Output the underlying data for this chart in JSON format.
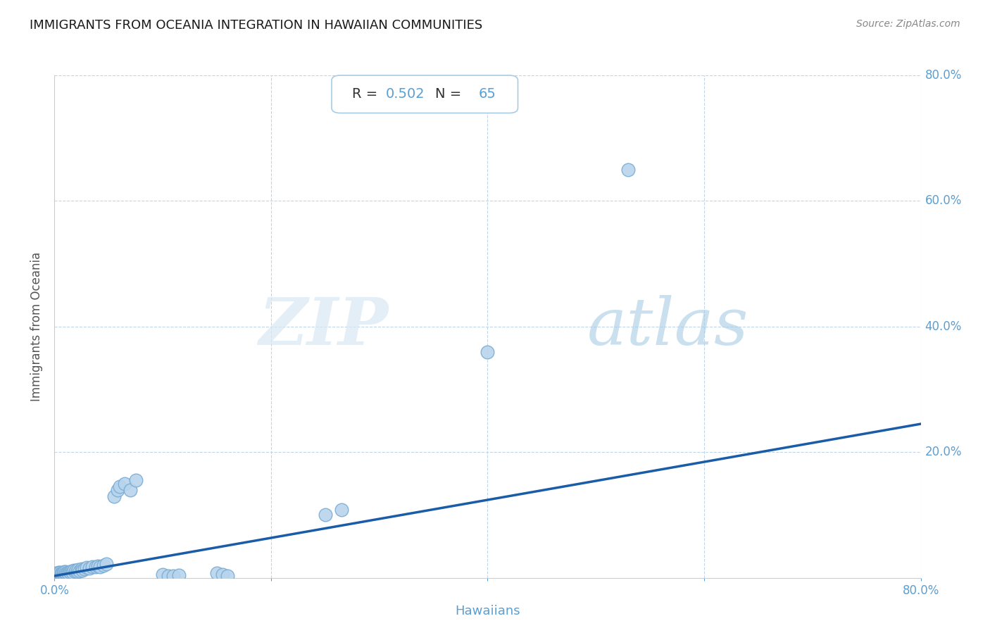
{
  "title": "IMMIGRANTS FROM OCEANIA INTEGRATION IN HAWAIIAN COMMUNITIES",
  "source": "Source: ZipAtlas.com",
  "xlabel": "Hawaiians",
  "ylabel": "Immigrants from Oceania",
  "R": 0.502,
  "N": 65,
  "xlim": [
    0.0,
    0.8
  ],
  "ylim": [
    0.0,
    0.8
  ],
  "xticks": [
    0.0,
    0.2,
    0.4,
    0.6,
    0.8
  ],
  "xticklabels": [
    "0.0%",
    "",
    "",
    "",
    "80.0%"
  ],
  "yticks": [
    0.2,
    0.4,
    0.6,
    0.8
  ],
  "yticklabels": [
    "20.0%",
    "40.0%",
    "60.0%",
    "80.0%"
  ],
  "scatter_color": "#b8d4ed",
  "scatter_edge_color": "#7aadd4",
  "line_color": "#1a5ca8",
  "background_color": "#ffffff",
  "title_color": "#1a1a1a",
  "axis_label_color": "#5a9fd4",
  "tick_label_color": "#5a9fd4",
  "grid_color": "#c0d5e8",
  "line_start_y": 0.003,
  "line_end_y": 0.245,
  "scatter_x": [
    0.001,
    0.001,
    0.002,
    0.002,
    0.002,
    0.003,
    0.003,
    0.003,
    0.004,
    0.004,
    0.004,
    0.005,
    0.005,
    0.005,
    0.006,
    0.006,
    0.007,
    0.007,
    0.008,
    0.008,
    0.009,
    0.009,
    0.01,
    0.01,
    0.011,
    0.012,
    0.013,
    0.014,
    0.015,
    0.016,
    0.017,
    0.018,
    0.019,
    0.02,
    0.021,
    0.022,
    0.023,
    0.025,
    0.026,
    0.028,
    0.03,
    0.032,
    0.035,
    0.038,
    0.04,
    0.042,
    0.045,
    0.048,
    0.055,
    0.058,
    0.06,
    0.065,
    0.07,
    0.075,
    0.1,
    0.105,
    0.11,
    0.115,
    0.15,
    0.155,
    0.16,
    0.25,
    0.265,
    0.4,
    0.53
  ],
  "scatter_y": [
    0.003,
    0.005,
    0.003,
    0.005,
    0.007,
    0.003,
    0.005,
    0.008,
    0.004,
    0.006,
    0.009,
    0.004,
    0.006,
    0.009,
    0.005,
    0.007,
    0.005,
    0.008,
    0.006,
    0.009,
    0.006,
    0.01,
    0.007,
    0.01,
    0.008,
    0.009,
    0.008,
    0.01,
    0.009,
    0.011,
    0.009,
    0.012,
    0.01,
    0.012,
    0.01,
    0.013,
    0.011,
    0.014,
    0.012,
    0.014,
    0.016,
    0.015,
    0.018,
    0.017,
    0.019,
    0.018,
    0.02,
    0.022,
    0.13,
    0.14,
    0.145,
    0.15,
    0.14,
    0.155,
    0.005,
    0.003,
    0.003,
    0.004,
    0.007,
    0.005,
    0.003,
    0.1,
    0.108,
    0.36,
    0.65
  ]
}
